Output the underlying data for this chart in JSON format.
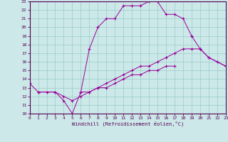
{
  "xlabel": "Windchill (Refroidissement éolien,°C)",
  "bg_color": "#cce8e8",
  "grid_color": "#99cccc",
  "line_color": "#990099",
  "xmin": 0,
  "xmax": 23,
  "ymin": 10,
  "ymax": 23,
  "series": [
    {
      "x": [
        0,
        1,
        3,
        4,
        5,
        6,
        7,
        8,
        9,
        10,
        11,
        12,
        13,
        14,
        15,
        16,
        17,
        18,
        19
      ],
      "y": [
        13.5,
        12.5,
        12.5,
        11.5,
        10.0,
        12.5,
        17.5,
        20.0,
        21.0,
        21.0,
        22.5,
        22.5,
        22.5,
        23.0,
        23.0,
        21.5,
        21.5,
        21.0,
        19.0
      ]
    },
    {
      "x": [
        19,
        20,
        21,
        22,
        23
      ],
      "y": [
        19.0,
        17.5,
        16.5,
        16.0,
        15.5
      ]
    },
    {
      "x": [
        1,
        2,
        3,
        4,
        5,
        6,
        7,
        8,
        9,
        10,
        11,
        12,
        13,
        14,
        15,
        16,
        17,
        18,
        19,
        20
      ],
      "y": [
        12.5,
        12.5,
        12.5,
        12.0,
        11.5,
        12.0,
        12.5,
        13.0,
        13.5,
        14.0,
        14.5,
        15.0,
        15.5,
        15.5,
        16.0,
        16.5,
        17.0,
        17.5,
        17.5,
        17.5
      ]
    },
    {
      "x": [
        20,
        21,
        23
      ],
      "y": [
        17.5,
        16.5,
        15.5
      ]
    },
    {
      "x": [
        6,
        7,
        8,
        9,
        10,
        11,
        12,
        13,
        14,
        15,
        16,
        17
      ],
      "y": [
        12.5,
        12.5,
        13.0,
        13.0,
        13.5,
        14.0,
        14.5,
        14.5,
        15.0,
        15.0,
        15.5,
        15.5
      ]
    }
  ]
}
